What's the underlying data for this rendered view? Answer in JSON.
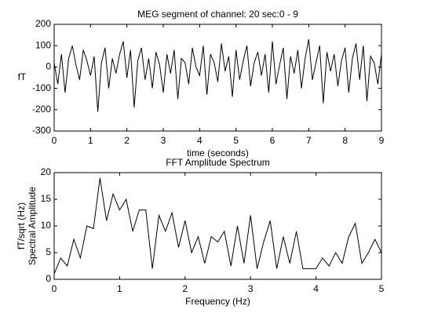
{
  "chart_data": [
    {
      "type": "line",
      "title": "MEG segment of channel: 20    sec:0 - 9",
      "xlabel": "time (seconds)",
      "ylabel": [
        "fT"
      ],
      "x": [
        0,
        0.1,
        0.2,
        0.3,
        0.4,
        0.5,
        0.6,
        0.7,
        0.8,
        0.9,
        1,
        1.1,
        1.2,
        1.3,
        1.4,
        1.5,
        1.6,
        1.7,
        1.8,
        1.9,
        2,
        2.1,
        2.2,
        2.3,
        2.4,
        2.5,
        2.6,
        2.7,
        2.8,
        2.9,
        3,
        3.1,
        3.2,
        3.3,
        3.4,
        3.5,
        3.6,
        3.7,
        3.8,
        3.9,
        4,
        4.1,
        4.2,
        4.3,
        4.4,
        4.5,
        4.6,
        4.7,
        4.8,
        4.9,
        5,
        5.1,
        5.2,
        5.3,
        5.4,
        5.5,
        5.6,
        5.7,
        5.8,
        5.9,
        6,
        6.1,
        6.2,
        6.3,
        6.4,
        6.5,
        6.6,
        6.7,
        6.8,
        6.9,
        7,
        7.1,
        7.2,
        7.3,
        7.4,
        7.5,
        7.6,
        7.7,
        7.8,
        7.9,
        8,
        8.1,
        8.2,
        8.3,
        8.4,
        8.5,
        8.6,
        8.7,
        8.8,
        8.9,
        9
      ],
      "values": [
        20,
        -80,
        60,
        -120,
        40,
        100,
        10,
        -60,
        80,
        30,
        -40,
        50,
        -210,
        20,
        90,
        -100,
        40,
        -30,
        60,
        120,
        -50,
        80,
        -190,
        30,
        90,
        -60,
        40,
        -100,
        70,
        10,
        -120,
        60,
        -30,
        80,
        -150,
        40,
        20,
        -80,
        90,
        0,
        -40,
        100,
        -130,
        60,
        20,
        -70,
        110,
        -20,
        50,
        -140,
        80,
        -60,
        30,
        100,
        -90,
        20,
        70,
        -40,
        60,
        -120,
        120,
        -80,
        10,
        90,
        -150,
        50,
        -30,
        80,
        -100,
        40,
        130,
        -60,
        20,
        100,
        -170,
        70,
        -20,
        60,
        -90,
        30,
        90,
        -120,
        40,
        110,
        -60,
        100,
        -160,
        50,
        20,
        -80,
        60
      ],
      "color": "#000000",
      "xlim": [
        0,
        9
      ],
      "ylim": [
        -300,
        200
      ],
      "xticks": [
        0,
        1,
        2,
        3,
        4,
        5,
        6,
        7,
        8,
        9
      ],
      "yticks": [
        -300,
        -200,
        -100,
        0,
        100,
        200
      ]
    },
    {
      "type": "line",
      "title": "FFT Amplitude Spectrum",
      "xlabel": "Frequency (Hz)",
      "ylabel": [
        "Spectral  Amplitude",
        "fT/sqrt (Hz)"
      ],
      "x": [
        0,
        0.1,
        0.2,
        0.3,
        0.4,
        0.5,
        0.6,
        0.7,
        0.8,
        0.9,
        1,
        1.1,
        1.2,
        1.3,
        1.4,
        1.5,
        1.6,
        1.7,
        1.8,
        1.9,
        2,
        2.1,
        2.2,
        2.3,
        2.4,
        2.5,
        2.6,
        2.7,
        2.8,
        2.9,
        3,
        3.1,
        3.2,
        3.3,
        3.4,
        3.5,
        3.6,
        3.7,
        3.8,
        3.9,
        4,
        4.1,
        4.2,
        4.3,
        4.4,
        4.5,
        4.6,
        4.7,
        4.8,
        4.9,
        5
      ],
      "values": [
        1,
        4,
        2.5,
        7.5,
        4,
        10,
        9.5,
        19,
        11,
        16,
        13,
        15,
        9,
        13,
        13,
        2,
        12,
        9,
        12.5,
        6,
        11,
        5,
        8,
        3,
        8,
        7,
        9,
        2.5,
        10,
        3,
        12,
        2,
        7,
        11,
        2,
        8,
        3,
        9,
        2,
        2,
        2,
        4,
        2.5,
        5,
        3,
        8,
        10.5,
        3,
        5,
        7.5,
        5
      ],
      "color": "#000000",
      "xlim": [
        0,
        5
      ],
      "ylim": [
        0,
        20
      ],
      "xticks": [
        0,
        1,
        2,
        3,
        4,
        5
      ],
      "yticks": [
        0,
        5,
        10,
        15,
        20
      ]
    }
  ]
}
